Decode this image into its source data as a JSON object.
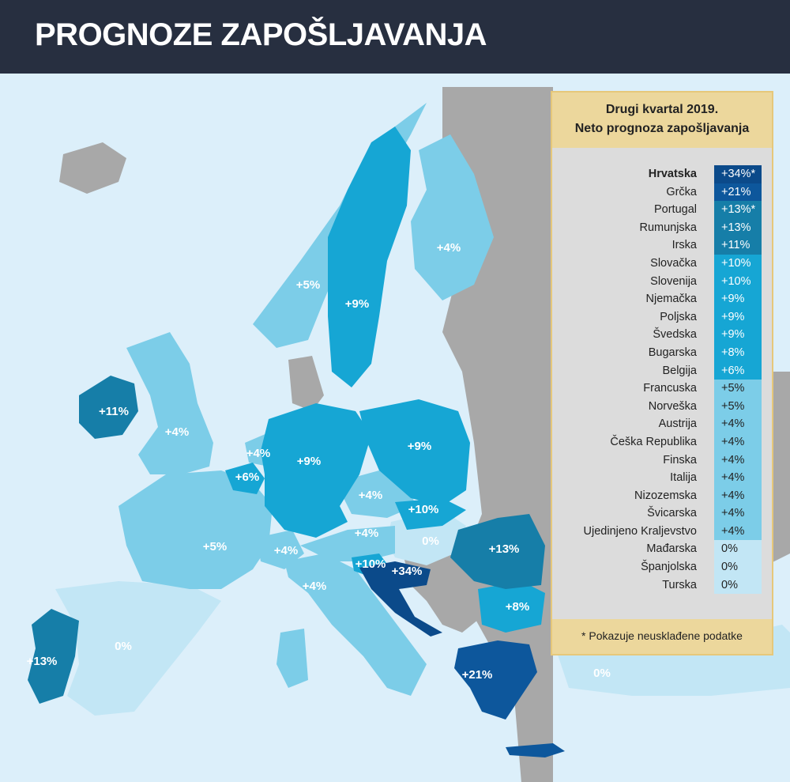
{
  "title": "PROGNOZE ZAPOŠLJAVANJA",
  "legend": {
    "heading_line1": "Drugi kvartal 2019.",
    "heading_line2": "Neto prognoza zapošljavanja",
    "footnote": "* Pokazuje neusklađene podatke",
    "rows": [
      {
        "name": "Hrvatska",
        "value": "+34%*",
        "bold": true,
        "color": "#0b4a8a"
      },
      {
        "name": "Grčka",
        "value": "+21%",
        "color": "#0d579c"
      },
      {
        "name": "Portugal",
        "value": "+13%*",
        "color": "#167ea8"
      },
      {
        "name": "Rumunjska",
        "value": "+13%",
        "color": "#167ea8"
      },
      {
        "name": "Irska",
        "value": "+11%",
        "color": "#167ea8"
      },
      {
        "name": "Slovačka",
        "value": "+10%",
        "color": "#16a6d4"
      },
      {
        "name": "Slovenija",
        "value": "+10%",
        "color": "#16a6d4"
      },
      {
        "name": "Njemačka",
        "value": "+9%",
        "color": "#16a6d4"
      },
      {
        "name": "Poljska",
        "value": "+9%",
        "color": "#16a6d4"
      },
      {
        "name": "Švedska",
        "value": "+9%",
        "color": "#16a6d4"
      },
      {
        "name": "Bugarska",
        "value": "+8%",
        "color": "#16a6d4"
      },
      {
        "name": "Belgija",
        "value": "+6%",
        "color": "#16a6d4"
      },
      {
        "name": "Francuska",
        "value": "+5%",
        "color": "#7ccde8"
      },
      {
        "name": "Norveška",
        "value": "+5%",
        "color": "#7ccde8"
      },
      {
        "name": "Austrija",
        "value": "+4%",
        "color": "#7ccde8"
      },
      {
        "name": "Češka Republika",
        "value": "+4%",
        "color": "#7ccde8"
      },
      {
        "name": "Finska",
        "value": "+4%",
        "color": "#7ccde8"
      },
      {
        "name": "Italija",
        "value": "+4%",
        "color": "#7ccde8"
      },
      {
        "name": "Nizozemska",
        "value": "+4%",
        "color": "#7ccde8"
      },
      {
        "name": "Švicarska",
        "value": "+4%",
        "color": "#7ccde8"
      },
      {
        "name": "Ujedinjeno Kraljevstvo",
        "value": "+4%",
        "color": "#7ccde8"
      },
      {
        "name": "Mađarska",
        "value": "0%",
        "color": "#c2e6f5"
      },
      {
        "name": "Španjolska",
        "value": "0%",
        "color": "#c2e6f5"
      },
      {
        "name": "Turska",
        "value": "0%",
        "color": "#c2e6f5"
      }
    ]
  },
  "map_labels": {
    "ireland": "+11%",
    "uk": "+4%",
    "portugal": "+13%",
    "spain": "0%",
    "france": "+5%",
    "belgium": "+6%",
    "netherlands": "+4%",
    "germany": "+9%",
    "switzerland": "+4%",
    "italy": "+4%",
    "austria": "+4%",
    "czech": "+4%",
    "poland": "+9%",
    "slovakia": "+10%",
    "hungary": "0%",
    "slovenia": "+10%",
    "croatia": "+34%",
    "romania": "+13%",
    "bulgaria": "+8%",
    "greece": "+21%",
    "turkey": "0%",
    "norway": "+5%",
    "sweden": "+9%",
    "finland": "+4%"
  },
  "colors": {
    "header": "#272f40",
    "sea": "#dceffa",
    "non_member": "#a8a8a8",
    "legend_head": "#ecd79c",
    "legend_body": "#dcdcdc"
  }
}
